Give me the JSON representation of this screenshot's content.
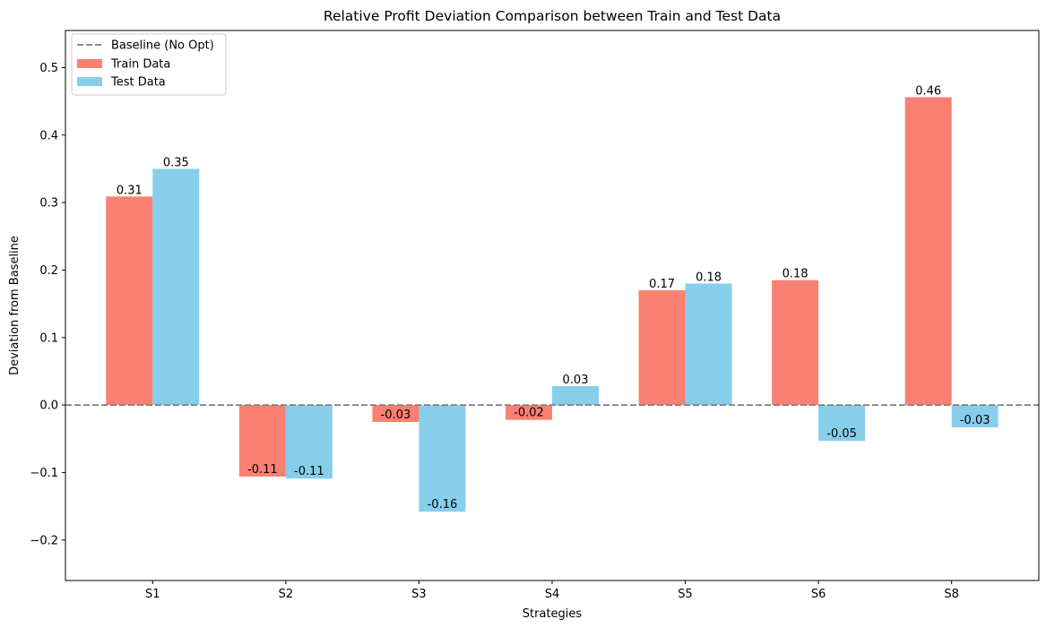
{
  "chart_data": {
    "type": "bar",
    "title": "Relative Profit Deviation Comparison between Train and Test Data",
    "xlabel": "Strategies",
    "ylabel": "Deviation from Baseline",
    "categories": [
      "S1",
      "S2",
      "S3",
      "S4",
      "S5",
      "S6",
      "S8"
    ],
    "series": [
      {
        "name": "Train Data",
        "color": "#fa8072",
        "values": [
          0.309,
          -0.106,
          -0.025,
          -0.022,
          0.17,
          0.185,
          0.456
        ],
        "labels": [
          "0.31",
          "-0.11",
          "-0.03",
          "-0.02",
          "0.17",
          "0.18",
          "0.46"
        ]
      },
      {
        "name": "Test Data",
        "color": "#87ceeb",
        "values": [
          0.35,
          -0.109,
          -0.158,
          0.028,
          0.18,
          -0.053,
          -0.033
        ],
        "labels": [
          "0.35",
          "-0.11",
          "-0.16",
          "0.03",
          "0.18",
          "-0.05",
          "-0.03"
        ]
      }
    ],
    "baseline": {
      "name": "Baseline (No Opt)",
      "value": 0,
      "color": "#808080",
      "style": "dashed"
    },
    "ylim": [
      -0.26,
      0.555
    ],
    "yticks": [
      -0.2,
      -0.1,
      0.0,
      0.1,
      0.2,
      0.3,
      0.4,
      0.5
    ],
    "ytick_labels": [
      "−0.2",
      "−0.1",
      "0.0",
      "0.1",
      "0.2",
      "0.3",
      "0.4",
      "0.5"
    ],
    "grid": false,
    "legend_position": "top-left"
  }
}
